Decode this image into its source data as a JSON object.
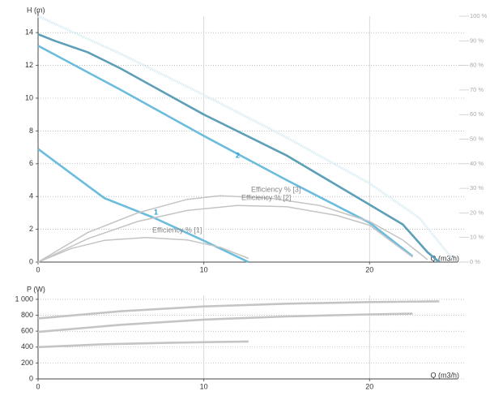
{
  "chart_data": [
    {
      "type": "line",
      "y_label": "H (m)",
      "x_label": "Q (m3/h)",
      "xlim": [
        0,
        25.8
      ],
      "xticks": [
        0,
        10,
        20
      ],
      "ylim": [
        0,
        15
      ],
      "yticks": [
        0,
        2,
        4,
        6,
        8,
        10,
        12,
        14
      ],
      "y2lim": [
        0,
        100
      ],
      "y2ticks": [
        {
          "value": 0,
          "label": "0 %"
        },
        {
          "value": 10,
          "label": "10 %"
        },
        {
          "value": 20,
          "label": "20 %"
        },
        {
          "value": 30,
          "label": "30 %"
        },
        {
          "value": 40,
          "label": "40 %"
        },
        {
          "value": 50,
          "label": "50 %"
        },
        {
          "value": 60,
          "label": "60 %"
        },
        {
          "value": 70,
          "label": "70 %"
        },
        {
          "value": 80,
          "label": "80 %"
        },
        {
          "value": 90,
          "label": "90 %"
        },
        {
          "value": 100,
          "label": "100 %"
        }
      ],
      "grid": true,
      "series": [
        {
          "color": "#d3e9f2",
          "dashed": true,
          "x": [
            0,
            5,
            10,
            15,
            20,
            23,
            25
          ],
          "values": [
            15,
            12.7,
            10.2,
            7.6,
            4.8,
            2.7,
            0.2
          ]
        },
        {
          "color": "#5e9fb8",
          "x": [
            0,
            1,
            3,
            5,
            10,
            15,
            20,
            22,
            23.5,
            24.2
          ],
          "values": [
            13.9,
            13.5,
            12.8,
            11.8,
            9.0,
            6.5,
            3.5,
            2.3,
            0.6,
            0
          ]
        },
        {
          "name": "2",
          "color": "#6cbcdd",
          "x": [
            0,
            5,
            10,
            15,
            20,
            22.6
          ],
          "values": [
            13.2,
            10.5,
            7.7,
            5.0,
            2.4,
            0.35
          ]
        },
        {
          "name": "1",
          "color": "#6cbcdd",
          "x": [
            0,
            2,
            4,
            7,
            10,
            12.7
          ],
          "values": [
            6.9,
            5.4,
            3.9,
            2.7,
            1.3,
            0
          ]
        },
        {
          "name": "Efficiency % [3]",
          "color": "#c4c4c4",
          "axis": "y2",
          "x": [
            0,
            3,
            6,
            9,
            11,
            14,
            17,
            20,
            22,
            23.5
          ],
          "values": [
            0,
            12,
            20,
            25.5,
            27,
            26,
            23,
            16.5,
            9,
            1
          ]
        },
        {
          "name": "Efficiency % [2]",
          "color": "#c4c4c4",
          "axis": "y2",
          "x": [
            0,
            3,
            6,
            9,
            12,
            15,
            18,
            20,
            22.6
          ],
          "values": [
            0,
            9.5,
            16.5,
            21,
            23,
            22.5,
            19,
            15,
            2
          ]
        },
        {
          "name": "Efficiency % [1]",
          "color": "#c4c4c4",
          "axis": "y2",
          "x": [
            0,
            2,
            4,
            6.5,
            9,
            11,
            12.7
          ],
          "values": [
            0,
            5.5,
            8.8,
            10,
            9,
            6,
            1.5
          ]
        }
      ]
    },
    {
      "type": "line",
      "y_label": "P (W)",
      "x_label": "Q (m3/h)",
      "xlim": [
        0,
        25.8
      ],
      "xticks": [
        0,
        10,
        20
      ],
      "ylim": [
        0,
        1050
      ],
      "yticks": [
        0,
        200,
        400,
        600,
        800,
        {
          "value": 1000,
          "label": "1 000"
        }
      ],
      "grid": true,
      "series": [
        {
          "color": "#c4c4c4",
          "x": [
            0,
            5,
            10,
            15,
            20,
            24.2
          ],
          "values": [
            760,
            850,
            910,
            945,
            965,
            975
          ]
        },
        {
          "color": "#c4c4c4",
          "x": [
            0,
            5,
            10,
            15,
            20,
            22.6
          ],
          "values": [
            590,
            680,
            745,
            785,
            810,
            820
          ]
        },
        {
          "color": "#c4c4c4",
          "x": [
            0,
            4,
            8,
            12.7
          ],
          "values": [
            400,
            435,
            455,
            470
          ]
        }
      ]
    }
  ]
}
